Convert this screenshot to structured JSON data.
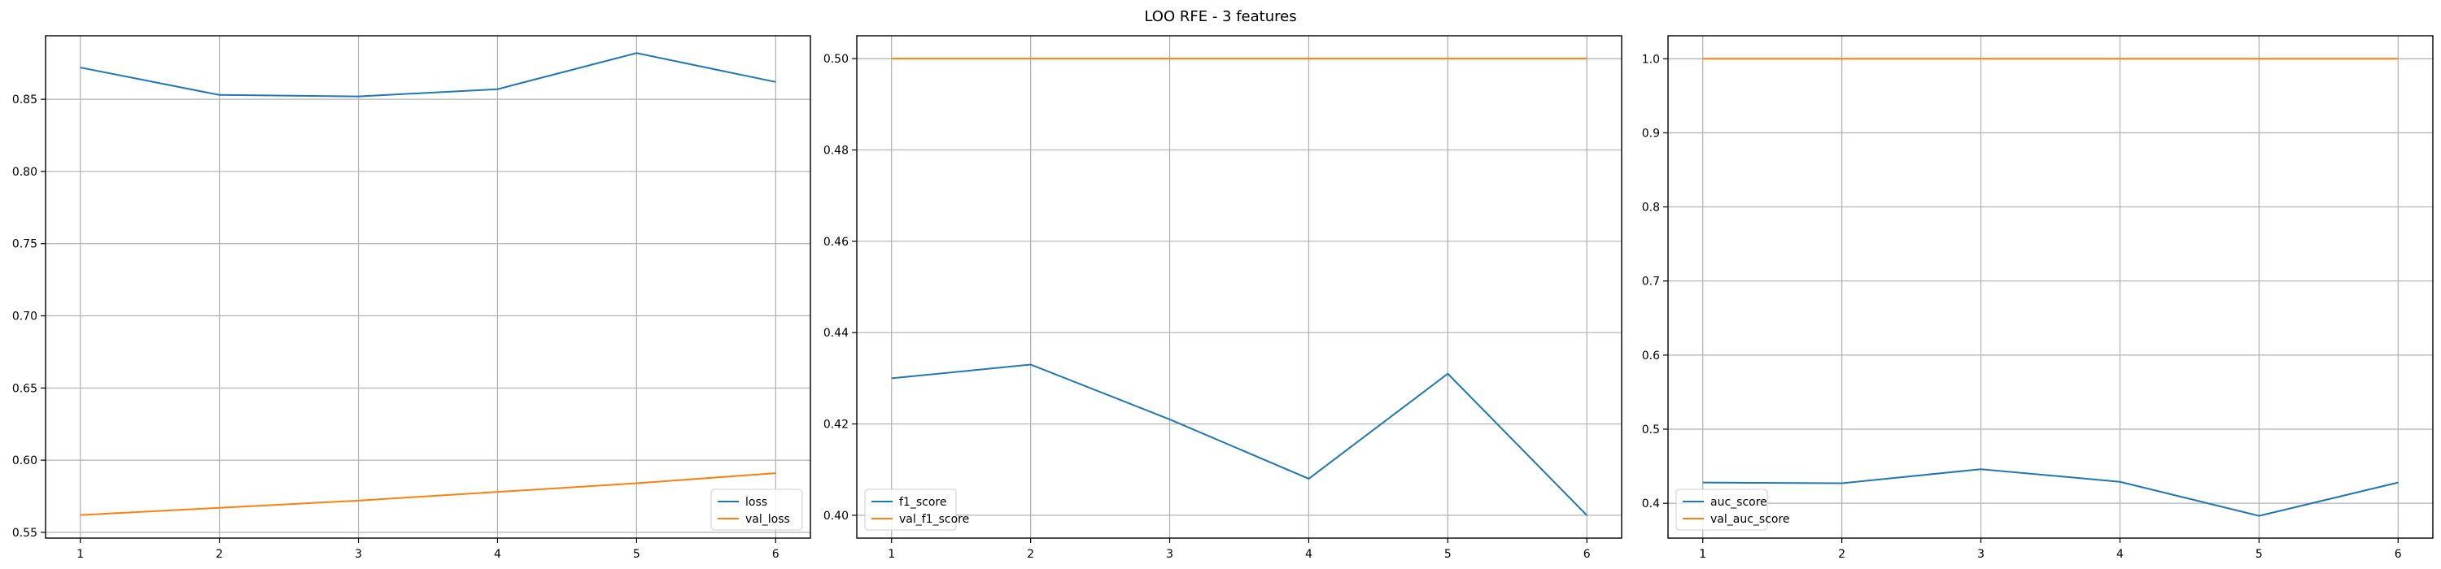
{
  "figure_title": "LOO RFE - 3 features",
  "colors": {
    "series_1": "#1f77b4",
    "series_2": "#ff7f0e",
    "grid": "#b0b0b0"
  },
  "chart_data": [
    {
      "type": "line",
      "x": [
        1,
        2,
        3,
        4,
        5,
        6
      ],
      "xticks": [
        1,
        2,
        3,
        4,
        5,
        6
      ],
      "yticks": [
        0.55,
        0.6,
        0.65,
        0.7,
        0.75,
        0.8,
        0.85
      ],
      "ytick_labels": [
        "0.55",
        "0.60",
        "0.65",
        "0.70",
        "0.75",
        "0.80",
        "0.85"
      ],
      "xlim": [
        0.75,
        6.25
      ],
      "ylim": [
        0.546,
        0.894
      ],
      "grid": true,
      "legend_position": "lower right",
      "series": [
        {
          "name": "loss",
          "color": "#1f77b4",
          "values": [
            0.872,
            0.853,
            0.852,
            0.857,
            0.882,
            0.862
          ]
        },
        {
          "name": "val_loss",
          "color": "#ff7f0e",
          "values": [
            0.562,
            0.567,
            0.572,
            0.578,
            0.584,
            0.591
          ]
        }
      ]
    },
    {
      "type": "line",
      "x": [
        1,
        2,
        3,
        4,
        5,
        6
      ],
      "xticks": [
        1,
        2,
        3,
        4,
        5,
        6
      ],
      "yticks": [
        0.4,
        0.42,
        0.44,
        0.46,
        0.48,
        0.5
      ],
      "ytick_labels": [
        "0.40",
        "0.42",
        "0.44",
        "0.46",
        "0.48",
        "0.50"
      ],
      "xlim": [
        0.75,
        6.25
      ],
      "ylim": [
        0.395,
        0.505
      ],
      "grid": true,
      "legend_position": "lower left",
      "series": [
        {
          "name": "f1_score",
          "color": "#1f77b4",
          "values": [
            0.43,
            0.433,
            0.421,
            0.408,
            0.431,
            0.4
          ]
        },
        {
          "name": "val_f1_score",
          "color": "#ff7f0e",
          "values": [
            0.5,
            0.5,
            0.5,
            0.5,
            0.5,
            0.5
          ]
        }
      ]
    },
    {
      "type": "line",
      "x": [
        1,
        2,
        3,
        4,
        5,
        6
      ],
      "xticks": [
        1,
        2,
        3,
        4,
        5,
        6
      ],
      "yticks": [
        0.4,
        0.5,
        0.6,
        0.7,
        0.8,
        0.9,
        1.0
      ],
      "ytick_labels": [
        "0.4",
        "0.5",
        "0.6",
        "0.7",
        "0.8",
        "0.9",
        "1.0"
      ],
      "xlim": [
        0.75,
        6.25
      ],
      "ylim": [
        0.353,
        1.031
      ],
      "grid": true,
      "legend_position": "lower left",
      "series": [
        {
          "name": "auc_score",
          "color": "#1f77b4",
          "values": [
            0.428,
            0.427,
            0.446,
            0.429,
            0.383,
            0.428
          ]
        },
        {
          "name": "val_auc_score",
          "color": "#ff7f0e",
          "values": [
            1.0,
            1.0,
            1.0,
            1.0,
            1.0,
            1.0
          ]
        }
      ]
    }
  ]
}
